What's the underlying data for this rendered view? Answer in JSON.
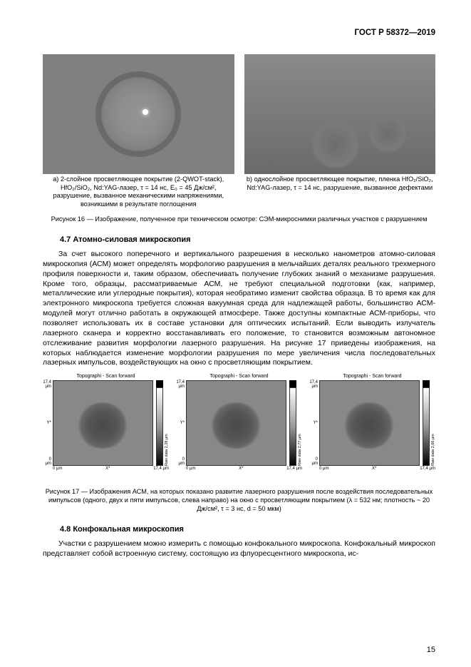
{
  "doc_number": "ГОСТ Р 58372—2019",
  "fig16": {
    "a_caption": "a) 2-слойное просветляющее покрытие (2-QWOT-stack), HfO₂/SiO₂, Nd:YAG-лазер, τ = 14 нс, E₀ = 45 Дж/см², разрушение, вызванное механическими напряжениями, возникшими в результате поглощения",
    "b_caption": "b) однослойное просветляющее покрытие, пленка HfO₂/SiO₂, Nd:YAG-лазер, τ = 14 нс, разрушение, вызванное дефектами",
    "main_caption": "Рисунок 16 — Изображение, полученное при техническом осмотре: СЭМ-микроснимки различных участков с разрушением"
  },
  "sec47": {
    "title": "4.7 Атомно-силовая микроскопия",
    "body": "За счет высокого поперечного и вертикального разрешения в несколько нанометров атомно-силовая микроскопия (АСМ) может определять морфологию разрушения в мельчайших деталях реального трехмерного профиля поверхности и, таким образом, обеспечивать получение глубоких знаний о механизме разрушения. Кроме того, образцы, рассматриваемые АСМ, не требуют специальной подготовки (как, например, металлические или углеродные покрытия), которая необратимо изменит свойства образца. В то время как для электронного микроскопа требуется сложная вакуумная среда для надлежащей работы, большинство АСМ-модулей могут отлично работать в окружающей атмосфере. Также доступны компактные АСМ-приборы, что позволяет использовать их в составе установки для оптических испытаний. Если выводить излучатель лазерного сканера и корректно восстанавливать его положение, то становится возможным автономное отслеживание развития морфологии лазерного разрушения. На рисунке 17 приведены изображения, на которых наблюдается изменение морфологии разрушения по мере увеличения числа последовательных лазерных импульсов, воздействующих на окно с просветляющим покрытием."
  },
  "fig17": {
    "panel_title": "Topographi - Scan forward",
    "y_hi": "17,4 μm",
    "y_lo": "0 μm",
    "x_lo": "0 μm",
    "x_hi": "17,4 μm",
    "x_axis": "X*",
    "y_axis": "Y*",
    "bar_top": "Topographi range",
    "raw_labels": [
      "Raw data 2,28 μm",
      "Raw data 2,77 μm",
      "Raw data 2,66 μm"
    ],
    "caption": "Рисунок 17 — Изображения АСМ, на которых показано развитие лазерного разрушения после воздействия последовательных импульсов (одного, двух и пяти импульсов, слева направо) на окно с просветляющим покрытием (λ = 532 нм; плотность ~ 20 Дж/см², τ = 3 нс, d = 50 мкм)"
  },
  "sec48": {
    "title": "4.8 Конфокальная микроскопия",
    "body": "Участки с разрушением можно измерить с помощью конфокального микроскопа. Конфокальный микроскоп представляет собой встроенную систему, состоящую из флуоресцентного микроскопа, ис-"
  },
  "page_number": "15"
}
